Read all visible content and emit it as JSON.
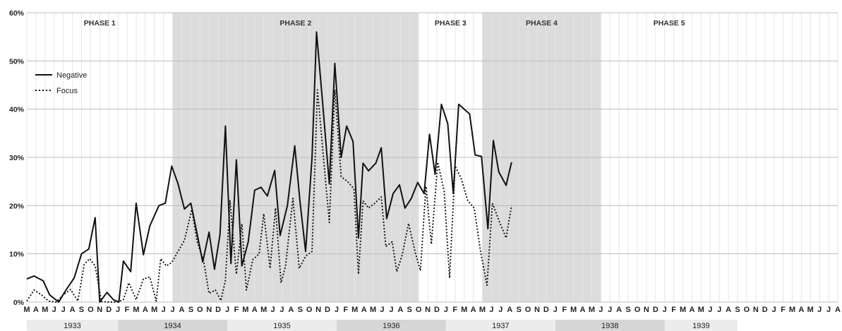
{
  "chart_data": {
    "type": "line",
    "title": "",
    "xlabel": "",
    "ylabel": "",
    "ylim": [
      0,
      60
    ],
    "grid": true,
    "legend_position": "top-left",
    "y_ticks": [
      "0%",
      "10%",
      "20%",
      "30%",
      "40%",
      "50%",
      "60%"
    ],
    "month_labels": [
      "M",
      "A",
      "M",
      "J",
      "J",
      "A",
      "S",
      "O",
      "N",
      "D",
      "J",
      "F",
      "M",
      "A",
      "M",
      "J",
      "J",
      "A",
      "S",
      "O",
      "N",
      "D",
      "J",
      "F",
      "M",
      "A",
      "M",
      "J",
      "J",
      "A",
      "S",
      "O",
      "N",
      "D",
      "J",
      "F",
      "M",
      "A",
      "M",
      "J",
      "J",
      "A",
      "S",
      "O",
      "N",
      "D",
      "J",
      "F",
      "M",
      "A",
      "M",
      "J",
      "J",
      "A",
      "S",
      "O",
      "N",
      "D",
      "J",
      "F",
      "M",
      "A",
      "M",
      "J",
      "J",
      "A",
      "S",
      "O",
      "N",
      "D",
      "J",
      "F",
      "M",
      "A",
      "M",
      "J",
      "J",
      "A",
      "S",
      "O",
      "N",
      "D",
      "J",
      "F",
      "M",
      "A",
      "M",
      "J",
      "J",
      "A"
    ],
    "years": [
      {
        "label": "1933",
        "start": 0,
        "end": 10
      },
      {
        "label": "1934",
        "start": 10,
        "end": 22
      },
      {
        "label": "1935",
        "start": 22,
        "end": 34
      },
      {
        "label": "1936",
        "start": 34,
        "end": 46
      },
      {
        "label": "1937",
        "start": 46,
        "end": 58
      },
      {
        "label": "1938",
        "start": 58,
        "end": 70
      },
      {
        "label": "1939",
        "start": 70,
        "end": 78
      }
    ],
    "phases": [
      {
        "label": "PHASE 1",
        "start": 0,
        "end": 16,
        "shaded": false
      },
      {
        "label": "PHASE 2",
        "start": 16,
        "end": 43,
        "shaded": true
      },
      {
        "label": "PHASE 3",
        "start": 43,
        "end": 50,
        "shaded": false
      },
      {
        "label": "PHASE 4",
        "start": 50,
        "end": 63,
        "shaded": true
      },
      {
        "label": "PHASE 5",
        "start": 63,
        "end": 78,
        "shaded": false
      }
    ],
    "series": [
      {
        "name": "Negative",
        "style": "solid",
        "color": "#111111",
        "values": [
          [
            0,
            4.8
          ],
          [
            0.8,
            5.4
          ],
          [
            1.8,
            4.4
          ],
          [
            2.5,
            1.5
          ],
          [
            3.5,
            0
          ],
          [
            4.3,
            2.5
          ],
          [
            5.2,
            5
          ],
          [
            6,
            10
          ],
          [
            6.8,
            11
          ],
          [
            7.5,
            17.5
          ],
          [
            8,
            0
          ],
          [
            8.8,
            2
          ],
          [
            9.5,
            0.5
          ],
          [
            10.1,
            0
          ],
          [
            10.6,
            8.5
          ],
          [
            11.4,
            6.3
          ],
          [
            12,
            20.5
          ],
          [
            12.8,
            9.8
          ],
          [
            13.5,
            15.8
          ],
          [
            14.5,
            20
          ],
          [
            15.2,
            20.5
          ],
          [
            15.9,
            28.2
          ],
          [
            16.6,
            24.5
          ],
          [
            17.3,
            19.3
          ],
          [
            18,
            20.5
          ],
          [
            18.6,
            15
          ],
          [
            19.3,
            8.3
          ],
          [
            20,
            14.5
          ],
          [
            20.6,
            6.8
          ],
          [
            21.2,
            14
          ],
          [
            21.8,
            36.5
          ],
          [
            22.4,
            8
          ],
          [
            23,
            29.5
          ],
          [
            23.6,
            7.5
          ],
          [
            24.3,
            12.5
          ],
          [
            25,
            23.2
          ],
          [
            25.7,
            23.8
          ],
          [
            26.4,
            22
          ],
          [
            27.2,
            27.3
          ],
          [
            27.8,
            13.8
          ],
          [
            28.6,
            20
          ],
          [
            29.4,
            32.4
          ],
          [
            30,
            20.5
          ],
          [
            30.6,
            10.5
          ],
          [
            31.3,
            30
          ],
          [
            31.8,
            56
          ],
          [
            32.5,
            40.5
          ],
          [
            33.2,
            24.5
          ],
          [
            33.8,
            49.5
          ],
          [
            34.5,
            30
          ],
          [
            35.1,
            36.5
          ],
          [
            35.8,
            33.3
          ],
          [
            36.4,
            13.3
          ],
          [
            36.9,
            28.8
          ],
          [
            37.5,
            27.2
          ],
          [
            38.3,
            28.8
          ],
          [
            38.9,
            32
          ],
          [
            39.5,
            17.3
          ],
          [
            40.2,
            22.5
          ],
          [
            40.9,
            24.3
          ],
          [
            41.5,
            19.5
          ],
          [
            42.2,
            21.5
          ],
          [
            42.9,
            24.8
          ],
          [
            43.6,
            22.5
          ],
          [
            44.2,
            34.8
          ],
          [
            44.8,
            26.5
          ],
          [
            45.5,
            41
          ],
          [
            46.2,
            37
          ],
          [
            46.8,
            22.5
          ],
          [
            47.4,
            41
          ],
          [
            48.6,
            39
          ],
          [
            49.2,
            30.5
          ],
          [
            49.9,
            30.2
          ],
          [
            50.6,
            15.2
          ],
          [
            51.2,
            33.5
          ],
          [
            51.8,
            27
          ],
          [
            52.6,
            24.2
          ],
          [
            53.2,
            29
          ]
        ]
      },
      {
        "name": "Focus",
        "style": "dotted",
        "color": "#111111",
        "values": [
          [
            0,
            0.2
          ],
          [
            0.8,
            2.5
          ],
          [
            1.6,
            1.5
          ],
          [
            2.4,
            0.2
          ],
          [
            3.2,
            0
          ],
          [
            4,
            1.5
          ],
          [
            4.8,
            2.6
          ],
          [
            5.6,
            0.2
          ],
          [
            6.3,
            7.8
          ],
          [
            6.9,
            9
          ],
          [
            7.5,
            7.5
          ],
          [
            8.2,
            0.1
          ],
          [
            9,
            0
          ],
          [
            9.9,
            0
          ],
          [
            10.6,
            0.5
          ],
          [
            11.2,
            4
          ],
          [
            12,
            0.5
          ],
          [
            12.8,
            4.8
          ],
          [
            13.5,
            5.2
          ],
          [
            14.2,
            0.2
          ],
          [
            14.7,
            9
          ],
          [
            15.3,
            7.5
          ],
          [
            15.9,
            8.2
          ],
          [
            16.6,
            10.5
          ],
          [
            17.3,
            12.8
          ],
          [
            18.1,
            19.2
          ],
          [
            18.7,
            12.5
          ],
          [
            19.4,
            8.5
          ],
          [
            20,
            1.8
          ],
          [
            20.7,
            2.5
          ],
          [
            21.3,
            0.3
          ],
          [
            21.8,
            4.5
          ],
          [
            22.3,
            21
          ],
          [
            23,
            5.8
          ],
          [
            23.6,
            16.2
          ],
          [
            24.1,
            2.5
          ],
          [
            24.8,
            8.8
          ],
          [
            25.5,
            10
          ],
          [
            26,
            18.3
          ],
          [
            26.7,
            7
          ],
          [
            27.3,
            19.5
          ],
          [
            27.9,
            4
          ],
          [
            28.4,
            7.5
          ],
          [
            29.2,
            21.5
          ],
          [
            29.9,
            7
          ],
          [
            30.6,
            9.5
          ],
          [
            31.3,
            10.5
          ],
          [
            31.9,
            44
          ],
          [
            32.6,
            29
          ],
          [
            33.2,
            16.5
          ],
          [
            33.8,
            44
          ],
          [
            34.5,
            26
          ],
          [
            35.2,
            25
          ],
          [
            35.9,
            23.5
          ],
          [
            36.4,
            5.8
          ],
          [
            36.9,
            21
          ],
          [
            37.5,
            19.5
          ],
          [
            38.2,
            20.5
          ],
          [
            38.9,
            21.8
          ],
          [
            39.4,
            11.5
          ],
          [
            40.1,
            12.5
          ],
          [
            40.6,
            6.3
          ],
          [
            41.2,
            9.8
          ],
          [
            41.9,
            16.3
          ],
          [
            42.6,
            10.5
          ],
          [
            43.2,
            6.5
          ],
          [
            43.8,
            24
          ],
          [
            44.4,
            12
          ],
          [
            45.1,
            29
          ],
          [
            45.8,
            23
          ],
          [
            46.4,
            5
          ],
          [
            47,
            28.2
          ],
          [
            47.7,
            25.5
          ],
          [
            48.4,
            21
          ],
          [
            49.1,
            19.5
          ],
          [
            49.8,
            10.5
          ],
          [
            50.5,
            3.5
          ],
          [
            51.1,
            20.5
          ],
          [
            51.9,
            16.5
          ],
          [
            52.6,
            13.3
          ],
          [
            53.2,
            20
          ]
        ]
      }
    ]
  }
}
